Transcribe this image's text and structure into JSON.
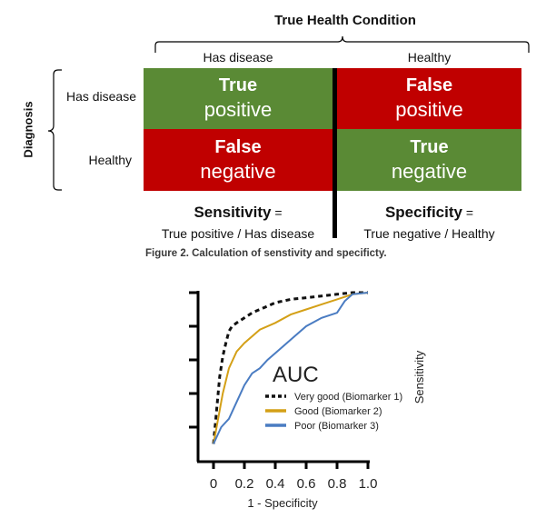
{
  "header": {
    "title": "True Health Condition"
  },
  "columns": [
    {
      "label": "Has disease"
    },
    {
      "label": "Healthy"
    }
  ],
  "rows_axis_label": "Diagnosis",
  "rows": [
    {
      "label": "Has disease"
    },
    {
      "label": "Healthy"
    }
  ],
  "cells": [
    {
      "line1": "True",
      "line2": "positive",
      "color": "#5a8a35"
    },
    {
      "line1": "False",
      "line2": "positive",
      "color": "#c00000"
    },
    {
      "line1": "False",
      "line2": "negative",
      "color": "#c00000"
    },
    {
      "line1": "True",
      "line2": "negative",
      "color": "#5a8a35"
    }
  ],
  "metrics": [
    {
      "name": "Sensitivity",
      "eq": "=",
      "formula": "True positive / Has disease"
    },
    {
      "name": "Specificity",
      "eq": "=",
      "formula": "True negative / Healthy"
    }
  ],
  "caption": "Figure 2. Calculation of senstivity and specificty.",
  "chart_data": {
    "type": "line",
    "xlabel": "1 - Specificity",
    "ylabel": "Sensitivity",
    "xlim": [
      0,
      1
    ],
    "ylim": [
      0,
      1
    ],
    "xticks": [
      "0",
      "0.2",
      "0.4",
      "0.6",
      "0.8",
      "1.0"
    ],
    "annotation": "AUC",
    "legend_position": "center-right",
    "series": [
      {
        "name": "Very good (Biomarker 1)",
        "color": "#111111",
        "style": "dashed",
        "x": [
          0,
          0.02,
          0.04,
          0.06,
          0.08,
          0.1,
          0.12,
          0.15,
          0.2,
          0.25,
          0.3,
          0.35,
          0.4,
          0.5,
          0.6,
          0.7,
          0.8,
          0.9,
          1.0
        ],
        "y": [
          0.1,
          0.3,
          0.5,
          0.62,
          0.7,
          0.77,
          0.8,
          0.82,
          0.85,
          0.88,
          0.9,
          0.92,
          0.94,
          0.96,
          0.97,
          0.98,
          0.99,
          1.0,
          1.0
        ]
      },
      {
        "name": "Good (Biomarker 2)",
        "color": "#d4a017",
        "style": "solid",
        "x": [
          0,
          0.03,
          0.06,
          0.1,
          0.15,
          0.2,
          0.3,
          0.4,
          0.5,
          0.6,
          0.7,
          0.8,
          0.9,
          1.0
        ],
        "y": [
          0.1,
          0.25,
          0.4,
          0.55,
          0.65,
          0.7,
          0.78,
          0.82,
          0.87,
          0.9,
          0.93,
          0.96,
          0.99,
          1.0
        ]
      },
      {
        "name": "Poor (Biomarker 3)",
        "color": "#4a7cc2",
        "style": "solid",
        "x": [
          0,
          0.05,
          0.1,
          0.15,
          0.2,
          0.25,
          0.3,
          0.35,
          0.4,
          0.5,
          0.6,
          0.7,
          0.8,
          0.85,
          0.9,
          1.0
        ],
        "y": [
          0.1,
          0.2,
          0.25,
          0.35,
          0.45,
          0.52,
          0.55,
          0.6,
          0.64,
          0.72,
          0.8,
          0.85,
          0.88,
          0.95,
          0.99,
          1.0
        ]
      }
    ]
  }
}
